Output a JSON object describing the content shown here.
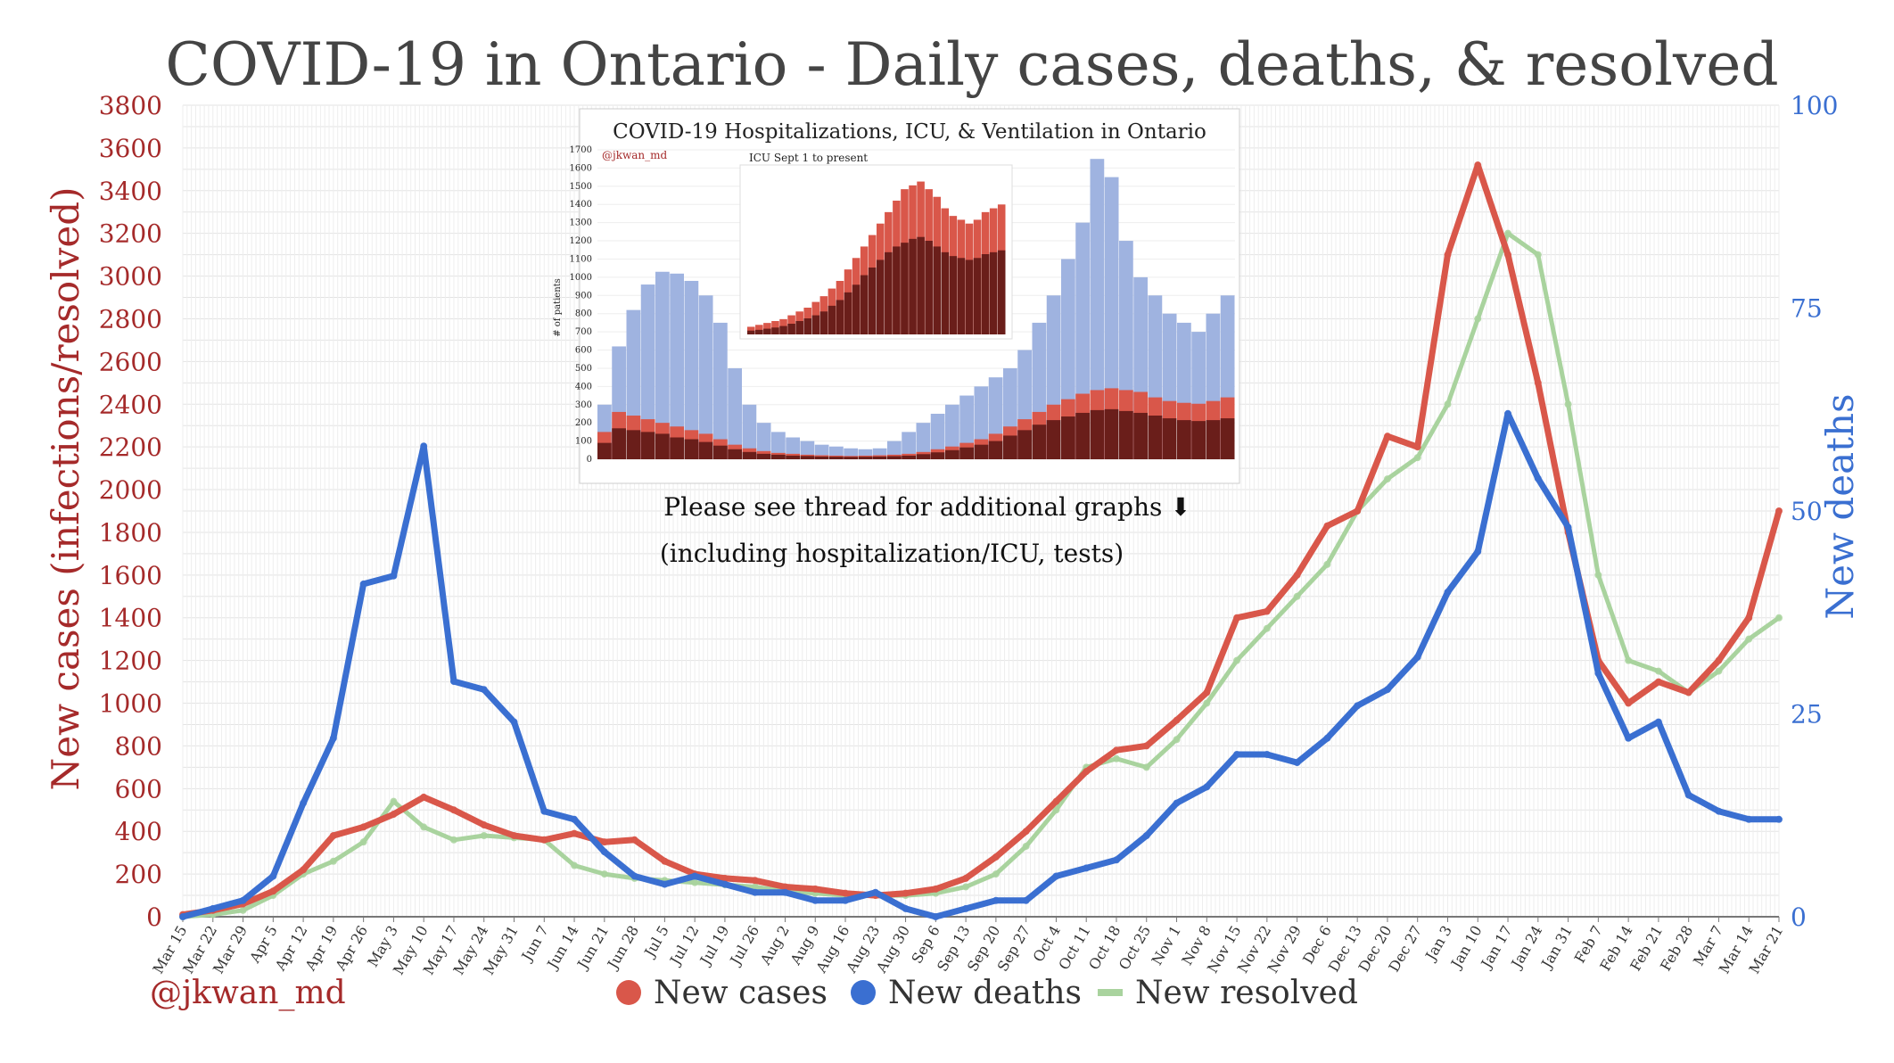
{
  "chart_data": {
    "type": "line",
    "title": "COVID-19 in Ontario - Daily cases, deaths, & resolved",
    "ylabel_left": "New cases (infections/resolved)",
    "ylabel_right": "New deaths",
    "ylim_left": [
      0,
      3800
    ],
    "ylim_right": [
      0,
      100
    ],
    "yticks_left": [
      0,
      200,
      400,
      600,
      800,
      1000,
      1200,
      1400,
      1600,
      1800,
      2000,
      2200,
      2400,
      2600,
      2800,
      3000,
      3200,
      3400,
      3600,
      3800
    ],
    "yticks_right": [
      0,
      25,
      50,
      75,
      100
    ],
    "x_tick_labels": [
      "Mar 15",
      "Mar 22",
      "Mar 29",
      "Apr 5",
      "Apr 12",
      "Apr 19",
      "Apr 26",
      "May 3",
      "May 10",
      "May 17",
      "May 24",
      "May 31",
      "Jun 7",
      "Jun 14",
      "Jun 21",
      "Jun 28",
      "Jul 5",
      "Jul 12",
      "Jul 19",
      "Jul 26",
      "Aug 2",
      "Aug 9",
      "Aug 16",
      "Aug 23",
      "Aug 30",
      "Sep 6",
      "Sep 13",
      "Sep 20",
      "Sep 27",
      "Oct 4",
      "Oct 11",
      "Oct 18",
      "Oct 25",
      "Nov 1",
      "Nov 8",
      "Nov 15",
      "Nov 22",
      "Nov 29",
      "Dec 6",
      "Dec 13",
      "Dec 20",
      "Dec 27",
      "Jan 3",
      "Jan 10",
      "Jan 17",
      "Jan 24",
      "Jan 31",
      "Feb 7",
      "Feb 14",
      "Feb 21",
      "Feb 28",
      "Mar 7",
      "Mar 14",
      "Mar 21"
    ],
    "grid": true,
    "legend_placement": "bottom-center",
    "series": [
      {
        "name": "New cases",
        "color": "#d9574a",
        "axis": "left",
        "values": [
          10,
          30,
          60,
          120,
          220,
          380,
          420,
          480,
          560,
          500,
          430,
          380,
          360,
          390,
          350,
          360,
          260,
          200,
          180,
          170,
          140,
          130,
          110,
          100,
          110,
          130,
          180,
          280,
          400,
          540,
          680,
          780,
          800,
          920,
          1050,
          1400,
          1430,
          1600,
          1830,
          1900,
          2250,
          2200,
          3100,
          3520,
          3100,
          2500,
          1800,
          1200,
          1000,
          1100,
          1050,
          1200,
          1400,
          1900
        ]
      },
      {
        "name": "New deaths",
        "color": "#3a6fd1",
        "axis": "right",
        "values": [
          0,
          1,
          2,
          5,
          14,
          22,
          41,
          42,
          58,
          29,
          28,
          24,
          13,
          12,
          8,
          5,
          4,
          5,
          4,
          3,
          3,
          2,
          2,
          3,
          1,
          0,
          1,
          2,
          2,
          5,
          6,
          7,
          10,
          14,
          16,
          20,
          20,
          19,
          22,
          26,
          28,
          32,
          40,
          45,
          62,
          54,
          48,
          30,
          22,
          24,
          15,
          13,
          12,
          12
        ]
      },
      {
        "name": "New resolved",
        "color": "#a9d39e",
        "axis": "left",
        "values": [
          0,
          10,
          30,
          100,
          200,
          260,
          350,
          540,
          420,
          360,
          380,
          370,
          360,
          240,
          200,
          180,
          170,
          160,
          150,
          140,
          120,
          110,
          100,
          100,
          100,
          110,
          140,
          200,
          330,
          500,
          700,
          740,
          700,
          830,
          1000,
          1200,
          1350,
          1500,
          1650,
          1900,
          2050,
          2150,
          2400,
          2800,
          3200,
          3100,
          2400,
          1600,
          1200,
          1150,
          1050,
          1150,
          1300,
          1400
        ]
      }
    ]
  },
  "inset": {
    "title": "COVID-19 Hospitalizations, ICU, & Ventilation in Ontario",
    "handle": "@jkwan_md",
    "ylabel": "# of patients",
    "yticks": [
      0,
      100,
      200,
      300,
      400,
      500,
      600,
      700,
      800,
      900,
      1000,
      1100,
      1200,
      1300,
      1400,
      1500,
      1600,
      1700
    ],
    "hospital_values": [
      300,
      620,
      820,
      960,
      1030,
      1020,
      980,
      900,
      750,
      500,
      300,
      200,
      150,
      120,
      100,
      80,
      70,
      60,
      55,
      60,
      100,
      150,
      200,
      250,
      300,
      350,
      400,
      450,
      500,
      600,
      750,
      900,
      1100,
      1300,
      1650,
      1550,
      1200,
      1000,
      900,
      800,
      750,
      700,
      800,
      900
    ],
    "icu_values": [
      150,
      260,
      240,
      220,
      200,
      180,
      160,
      140,
      110,
      80,
      60,
      45,
      35,
      30,
      25,
      22,
      20,
      18,
      20,
      22,
      25,
      30,
      40,
      55,
      70,
      90,
      110,
      140,
      180,
      220,
      260,
      300,
      330,
      360,
      380,
      390,
      380,
      370,
      340,
      320,
      310,
      305,
      320,
      340
    ],
    "vent_values": [
      90,
      170,
      160,
      150,
      140,
      120,
      110,
      95,
      75,
      55,
      40,
      30,
      25,
      20,
      18,
      15,
      14,
      13,
      14,
      15,
      17,
      20,
      28,
      38,
      50,
      65,
      80,
      100,
      130,
      160,
      190,
      215,
      235,
      255,
      270,
      275,
      265,
      255,
      240,
      225,
      215,
      210,
      215,
      225
    ],
    "sub_title": "ICU Sept 1 to present",
    "sub_icu_values": [
      20,
      25,
      30,
      35,
      40,
      50,
      60,
      70,
      85,
      100,
      120,
      140,
      170,
      200,
      230,
      260,
      290,
      320,
      350,
      380,
      390,
      400,
      380,
      360,
      330,
      310,
      300,
      290,
      300,
      320,
      330,
      340
    ],
    "sub_vent_values": [
      10,
      12,
      15,
      18,
      22,
      28,
      35,
      42,
      50,
      60,
      75,
      90,
      110,
      130,
      155,
      175,
      195,
      215,
      230,
      240,
      250,
      255,
      245,
      230,
      215,
      205,
      200,
      195,
      200,
      210,
      215,
      220
    ]
  },
  "notes": {
    "line1": "Please see thread for additional graphs ⬇",
    "line2": "(including hospitalization/ICU, tests)"
  },
  "handle": "@jkwan_md"
}
